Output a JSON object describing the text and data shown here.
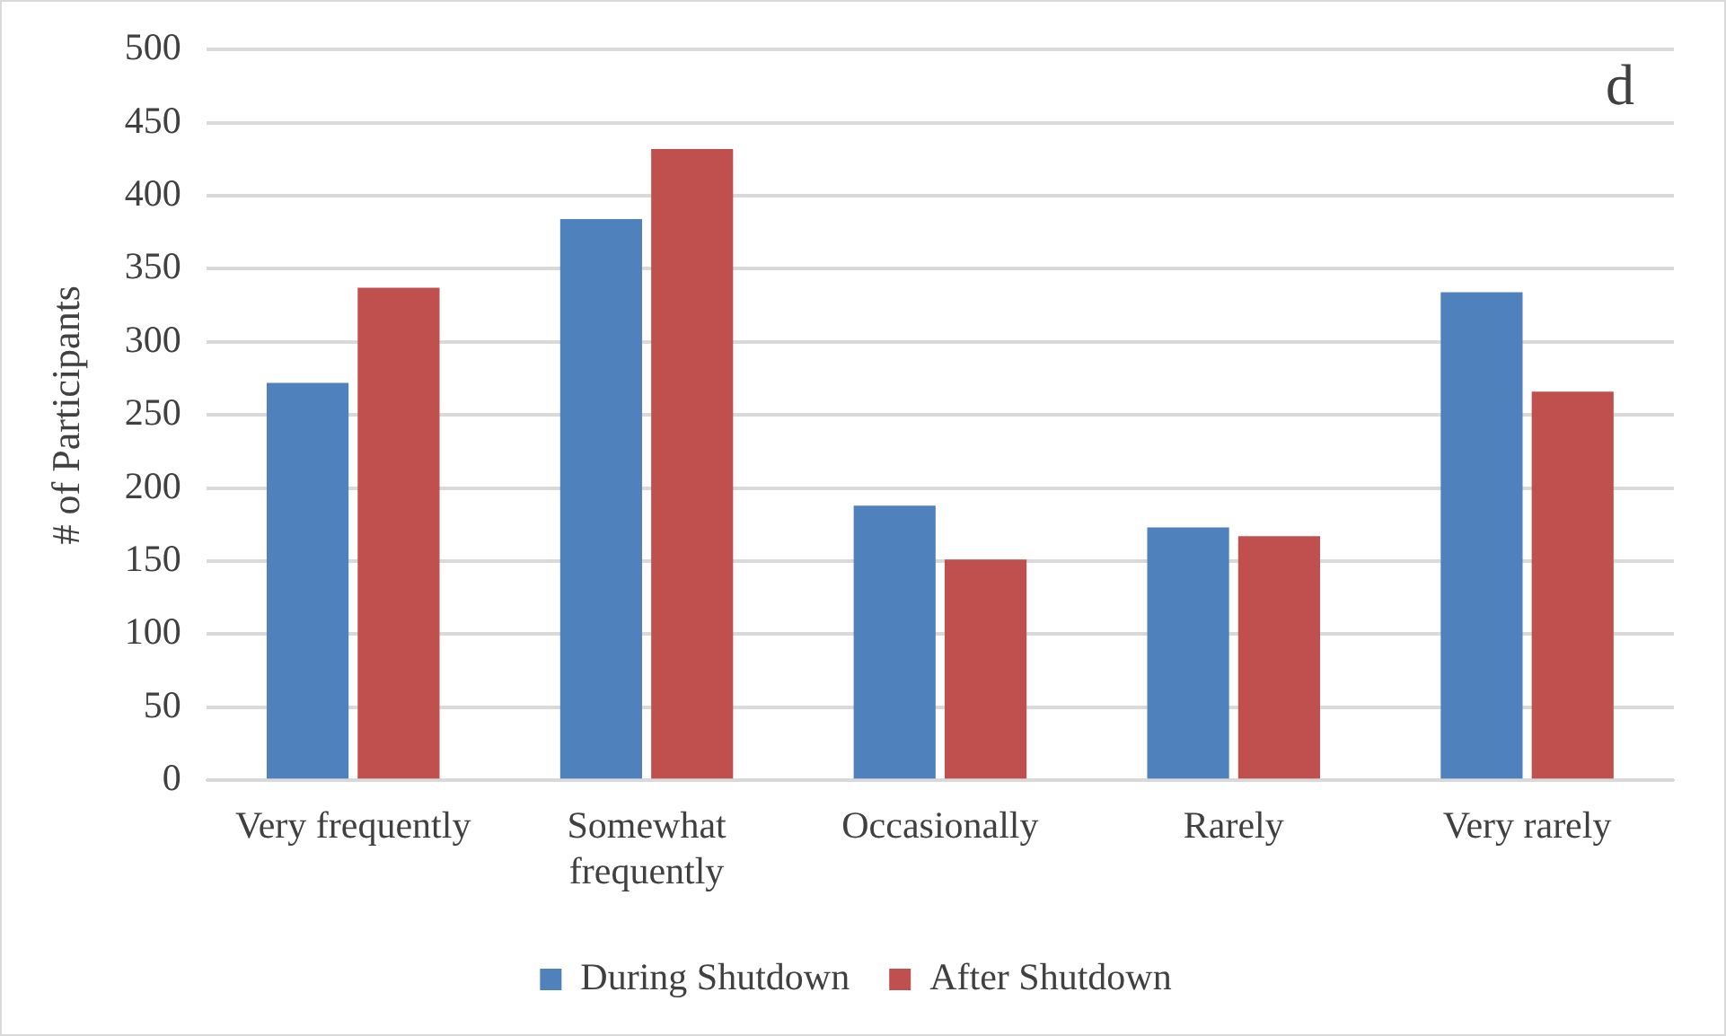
{
  "chart_data": {
    "type": "bar",
    "ylabel": "# of Participants",
    "categories": [
      "Very frequently",
      "Somewhat frequently",
      "Occasionally",
      "Rarely",
      "Very rarely"
    ],
    "series": [
      {
        "name": "During Shutdown",
        "color": "#4f81bd",
        "values": [
          272,
          384,
          188,
          173,
          334
        ]
      },
      {
        "name": "After Shutdown",
        "color": "#c0504d",
        "values": [
          337,
          432,
          151,
          167,
          266
        ]
      }
    ],
    "ylim": [
      0,
      500
    ],
    "yticks": [
      0,
      50,
      100,
      150,
      200,
      250,
      300,
      350,
      400,
      450,
      500
    ],
    "grid": "y",
    "legend": "bottom",
    "annotations": [
      "d"
    ]
  }
}
